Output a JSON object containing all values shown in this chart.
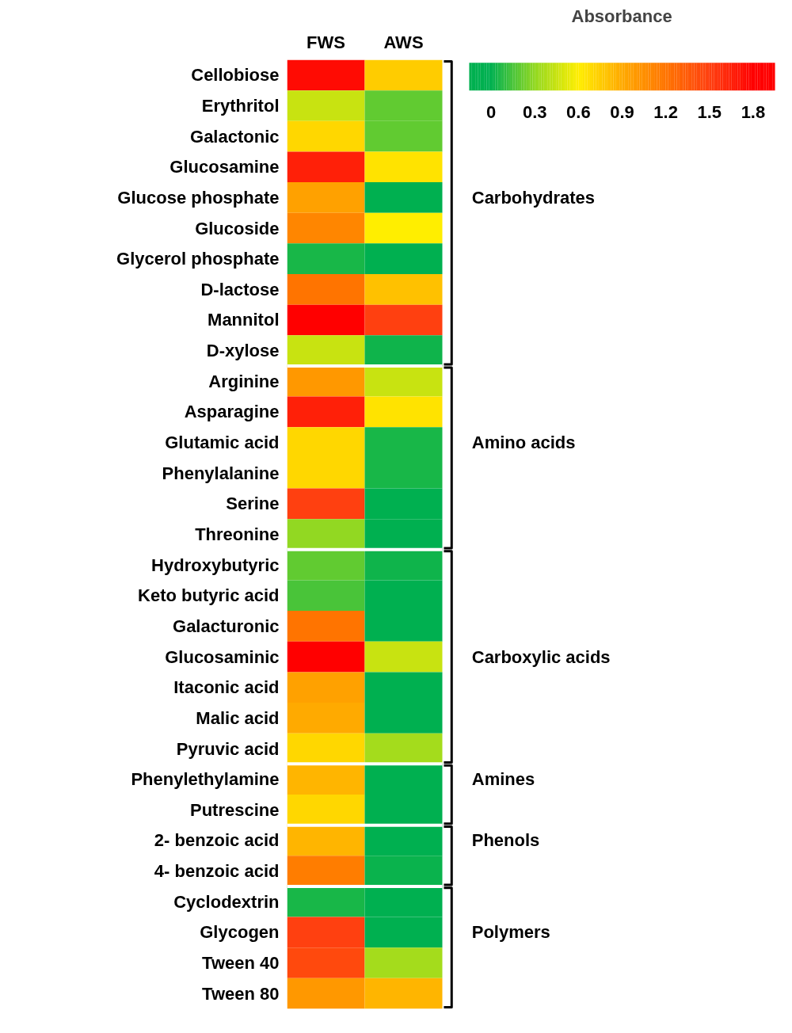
{
  "chart_data": {
    "type": "heatmap",
    "categories": [
      "FWS",
      "AWS"
    ],
    "y_categories": [
      "Cellobiose",
      "Erythritol",
      "Galactonic",
      "Glucosamine",
      "Glucose phosphate",
      "Glucoside",
      "Glycerol phosphate",
      "D-lactose",
      "Mannitol",
      "D-xylose",
      "Arginine",
      "Asparagine",
      "Glutamic acid",
      "Phenylalanine",
      "Serine",
      "Threonine",
      "Hydroxybutyric",
      "Keto butyric acid",
      "Galacturonic",
      "Glucosaminic",
      "Itaconic acid",
      "Malic acid",
      "Pyruvic acid",
      "Phenylethylamine",
      "Putrescine",
      "2- benzoic acid",
      "4- benzoic acid",
      "Cyclodextrin",
      "Glycogen",
      "Tween 40",
      "Tween 80"
    ],
    "cells": [
      [
        1.75,
        0.75
      ],
      [
        0.45,
        0.2
      ],
      [
        0.7,
        0.2
      ],
      [
        1.65,
        0.65
      ],
      [
        0.95,
        0.0
      ],
      [
        1.1,
        0.6
      ],
      [
        0.05,
        0.0
      ],
      [
        1.2,
        0.8
      ],
      [
        1.8,
        1.5
      ],
      [
        0.45,
        0.03
      ],
      [
        1.0,
        0.45
      ],
      [
        1.65,
        0.65
      ],
      [
        0.7,
        0.05
      ],
      [
        0.7,
        0.05
      ],
      [
        1.5,
        0.0
      ],
      [
        0.3,
        0.0
      ],
      [
        0.2,
        0.03
      ],
      [
        0.15,
        0.0
      ],
      [
        1.2,
        0.0
      ],
      [
        1.8,
        0.45
      ],
      [
        0.95,
        0.0
      ],
      [
        0.9,
        0.0
      ],
      [
        0.7,
        0.35
      ],
      [
        0.85,
        0.0
      ],
      [
        0.7,
        0.0
      ],
      [
        0.85,
        0.0
      ],
      [
        1.15,
        0.02
      ],
      [
        0.05,
        0.0
      ],
      [
        1.5,
        0.0
      ],
      [
        1.45,
        0.35
      ],
      [
        1.0,
        0.85
      ]
    ],
    "clabel": "Absorbance",
    "clim": [
      -0.15,
      1.95
    ],
    "cticks": [
      0,
      0.3,
      0.6,
      0.9,
      1.2,
      1.5,
      1.8
    ],
    "y2_categories": [
      null,
      null,
      null,
      null,
      "Carbohydrates",
      null,
      null,
      null,
      null,
      null,
      null,
      null,
      "Amino acids",
      null,
      null,
      null,
      null,
      null,
      null,
      "Carboxylic acids",
      null,
      null,
      null,
      "Amines",
      null,
      "Phenols",
      null,
      null,
      "Polymers",
      null,
      null
    ]
  }
}
